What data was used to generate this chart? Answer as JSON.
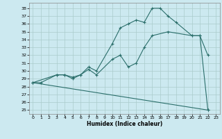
{
  "xlabel": "Humidex (Indice chaleur)",
  "background_color": "#cce9f0",
  "grid_color": "#aacccc",
  "line_color": "#2a6e6a",
  "xlim": [
    -0.5,
    23.5
  ],
  "ylim": [
    24.5,
    38.7
  ],
  "yticks": [
    25,
    26,
    27,
    28,
    29,
    30,
    31,
    32,
    33,
    34,
    35,
    36,
    37,
    38
  ],
  "xticks": [
    0,
    1,
    2,
    3,
    4,
    5,
    6,
    7,
    8,
    9,
    10,
    11,
    12,
    13,
    14,
    15,
    16,
    17,
    18,
    19,
    20,
    21,
    22,
    23
  ],
  "line1_x": [
    0,
    1,
    3,
    4,
    5,
    6,
    7,
    8,
    10,
    11,
    12,
    13,
    14,
    15,
    16,
    17,
    18,
    20,
    21,
    22
  ],
  "line1_y": [
    28.5,
    28.5,
    29.5,
    29.5,
    29.2,
    29.5,
    30.5,
    30.0,
    33.5,
    35.5,
    36.0,
    36.5,
    36.2,
    38.0,
    38.0,
    37.0,
    36.2,
    34.5,
    34.5,
    32.0
  ],
  "line2_x": [
    0,
    3,
    4,
    5,
    6,
    7,
    8,
    10,
    11,
    12,
    13,
    14,
    15,
    17,
    20,
    21,
    22
  ],
  "line2_y": [
    28.5,
    29.5,
    29.5,
    29.0,
    29.5,
    30.2,
    29.5,
    31.5,
    32.0,
    30.5,
    31.0,
    33.0,
    34.5,
    35.0,
    34.5,
    34.5,
    25.0
  ],
  "line3_x": [
    0,
    22
  ],
  "line3_y": [
    28.5,
    25.0
  ]
}
